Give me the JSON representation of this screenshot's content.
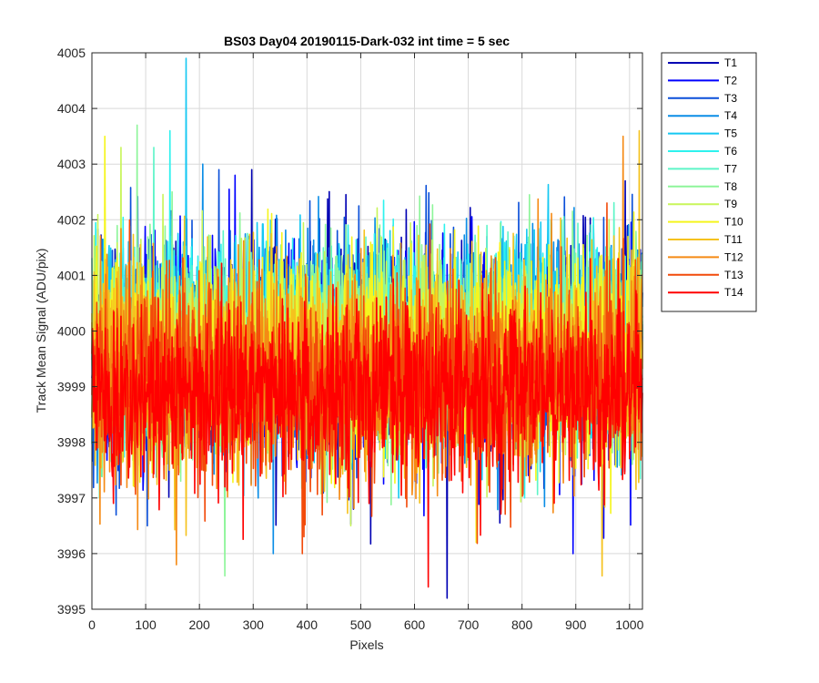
{
  "chart_data": {
    "type": "line",
    "title": "BS03 Day04 20190115-Dark-032 int time = 5 sec",
    "xlabel": "Pixels",
    "ylabel": "Track Mean Signal (ADU/pix)",
    "xlim": [
      0,
      1024
    ],
    "ylim": [
      3995,
      4005
    ],
    "xticks": [
      0,
      100,
      200,
      300,
      400,
      500,
      600,
      700,
      800,
      900,
      1000
    ],
    "yticks": [
      3995,
      3996,
      3997,
      3998,
      3999,
      4000,
      4001,
      4002,
      4003,
      4004,
      4005
    ],
    "grid": true,
    "legend_position": "outside-top-right",
    "samples_per_series": 1024,
    "series": [
      {
        "name": "T1",
        "color": "#0000b3",
        "mean": 3999.7,
        "std": 0.95,
        "min": 3995.2,
        "max": 4002.9
      },
      {
        "name": "T2",
        "color": "#0000ff",
        "mean": 3999.6,
        "std": 0.95,
        "min": 3996.0,
        "max": 4002.8
      },
      {
        "name": "T3",
        "color": "#0a4fd9",
        "mean": 3999.8,
        "std": 0.9,
        "min": 3996.5,
        "max": 4002.9
      },
      {
        "name": "T4",
        "color": "#0a8de6",
        "mean": 3999.8,
        "std": 0.9,
        "min": 3996.0,
        "max": 4003.0
      },
      {
        "name": "T5",
        "color": "#15c8f2",
        "mean": 3999.9,
        "std": 0.9,
        "min": 3997.0,
        "max": 4004.9
      },
      {
        "name": "T6",
        "color": "#2ef2ee",
        "mean": 3999.9,
        "std": 0.85,
        "min": 3997.0,
        "max": 4003.6
      },
      {
        "name": "T7",
        "color": "#5ef5c8",
        "mean": 3999.8,
        "std": 0.85,
        "min": 3997.0,
        "max": 4003.3
      },
      {
        "name": "T8",
        "color": "#8ef59a",
        "mean": 3999.7,
        "std": 0.9,
        "min": 3995.6,
        "max": 4003.7
      },
      {
        "name": "T9",
        "color": "#c8f55a",
        "mean": 3999.7,
        "std": 0.9,
        "min": 3996.5,
        "max": 4003.3
      },
      {
        "name": "T10",
        "color": "#f5f51e",
        "mean": 3999.6,
        "std": 0.9,
        "min": 3996.2,
        "max": 4003.5
      },
      {
        "name": "T11",
        "color": "#f5c21e",
        "mean": 3999.4,
        "std": 0.95,
        "min": 3995.6,
        "max": 4003.6
      },
      {
        "name": "T12",
        "color": "#f58a14",
        "mean": 3999.3,
        "std": 0.9,
        "min": 3995.8,
        "max": 4003.5
      },
      {
        "name": "T13",
        "color": "#f24a0a",
        "mean": 3999.1,
        "std": 0.85,
        "min": 3996.0,
        "max": 4002.3
      },
      {
        "name": "T14",
        "color": "#ff0000",
        "mean": 3998.9,
        "std": 0.8,
        "min": 3995.4,
        "max": 4001.3
      }
    ]
  }
}
